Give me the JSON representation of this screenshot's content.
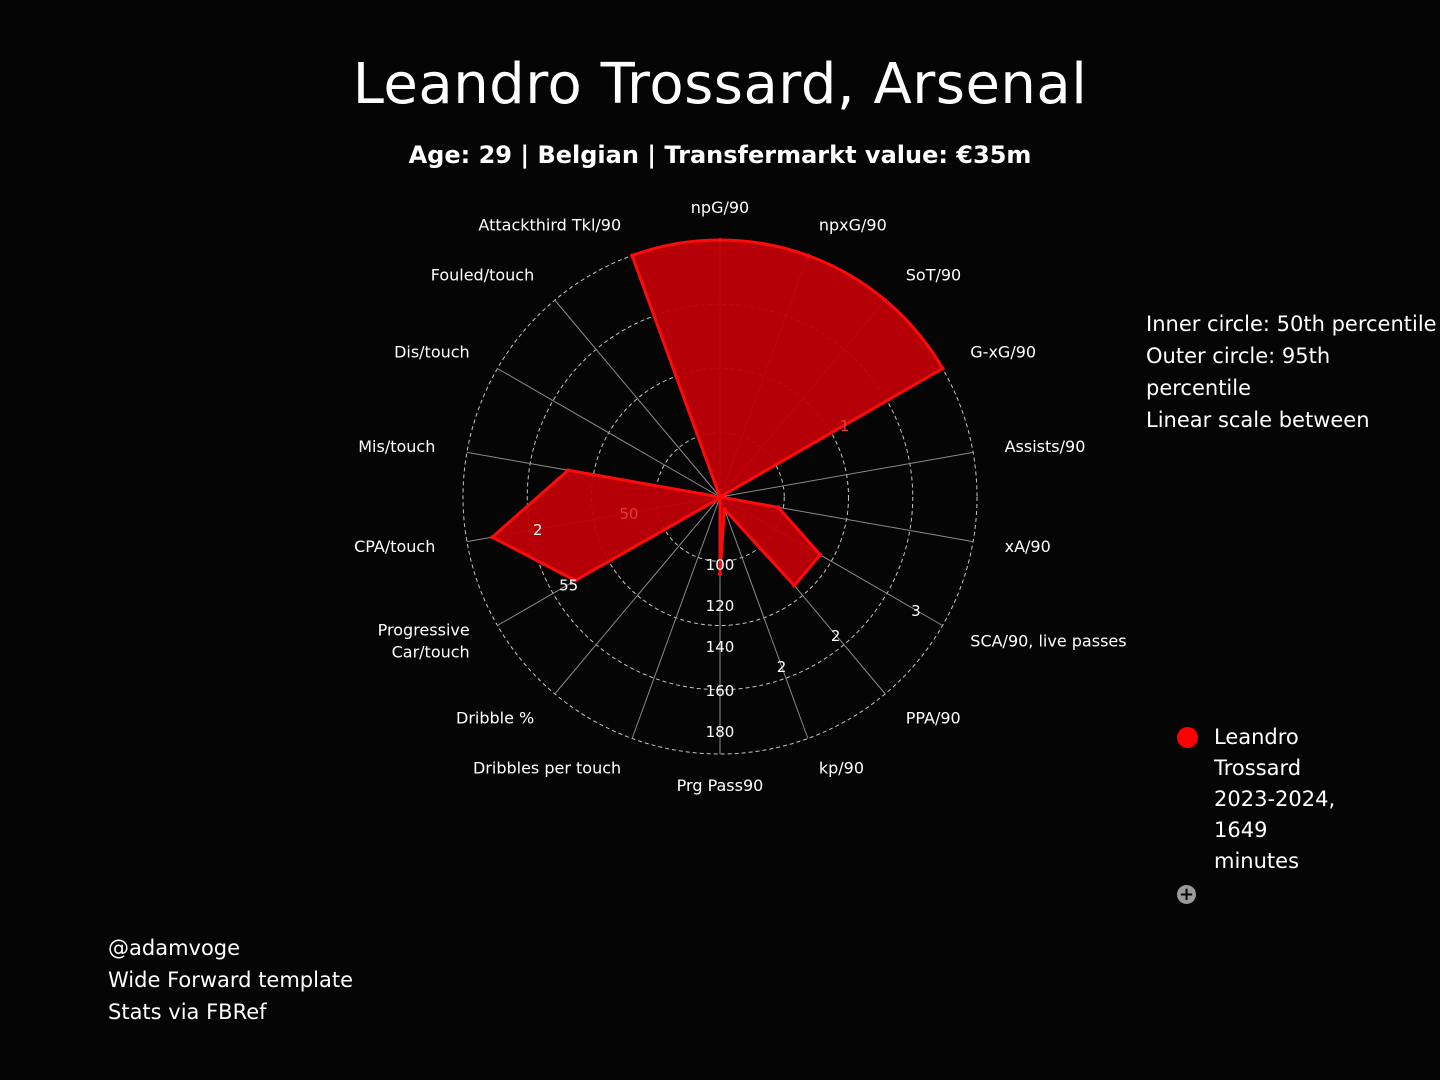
{
  "header": {
    "title": "Leandro Trossard, Arsenal",
    "subtitle": "Age: 29 | Belgian | Transfermarkt value: €35m"
  },
  "scale_note": [
    "Inner circle: 50th percentile",
    "Outer circle: 95th percentile",
    "Linear scale between"
  ],
  "credits": [
    "@adamvoge",
    "Wide Forward template",
    "Stats via FBRef"
  ],
  "colors": {
    "fill": "#c00008",
    "stroke": "#ff0a0a",
    "grid_ring": "#d8d8d8",
    "spoke": "#8a8a8a",
    "legend_marker": "#ff0000"
  },
  "chart_data": {
    "type": "radar",
    "title": "Leandro Trossard, Arsenal",
    "axes": [
      "npG/90",
      "npxG/90",
      "SoT/90",
      "G-xG/90",
      "Assists/90",
      "xA/90",
      "SCA/90, live passes",
      "PPA/90",
      "kp/90",
      "Prg Pass90",
      "Dribbles per touch",
      "Dribble %",
      "Progressive Car/touch",
      "CPA/touch",
      "Mis/touch",
      "Dis/touch",
      "Fouled/touch",
      "Attackthird Tkl/90"
    ],
    "scale": "linear between 50th percentile (inner circle) and 95th percentile (outer circle)",
    "radius_range": [
      0,
      1
    ],
    "rings": [
      0.25,
      0.5,
      0.75,
      1.0
    ],
    "series": [
      {
        "name": "Leandro Trossard 2023-2024, 1649 minutes",
        "color": "#ff0000",
        "values": [
          1.0,
          1.0,
          1.0,
          1.0,
          0.0,
          0.23,
          0.45,
          0.45,
          0.05,
          0.3,
          0.0,
          0.01,
          0.65,
          0.9,
          0.6,
          0.0,
          0.0,
          1.0
        ]
      }
    ],
    "tick_labels": [
      {
        "text": "1",
        "axis": 3,
        "r": 0.56
      },
      {
        "text": "3",
        "axis": 6,
        "r": 0.88
      },
      {
        "text": "2",
        "axis": 7,
        "r": 0.7
      },
      {
        "text": "2",
        "axis": 8,
        "r": 0.7
      },
      {
        "text": "100",
        "axis": 9,
        "r": 0.26
      },
      {
        "text": "120",
        "axis": 9,
        "r": 0.42
      },
      {
        "text": "140",
        "axis": 9,
        "r": 0.58
      },
      {
        "text": "160",
        "axis": 9,
        "r": 0.75
      },
      {
        "text": "180",
        "axis": 9,
        "r": 0.91
      },
      {
        "text": "55",
        "axis": 12,
        "r": 0.68
      },
      {
        "text": "2",
        "axis": 13,
        "r": 0.72
      },
      {
        "text": "50",
        "axis": 13,
        "r": 0.36
      }
    ],
    "legend": {
      "position": "right",
      "entries": [
        "Leandro Trossard 2023-2024, 1649 minutes"
      ],
      "add_button": "+"
    }
  }
}
